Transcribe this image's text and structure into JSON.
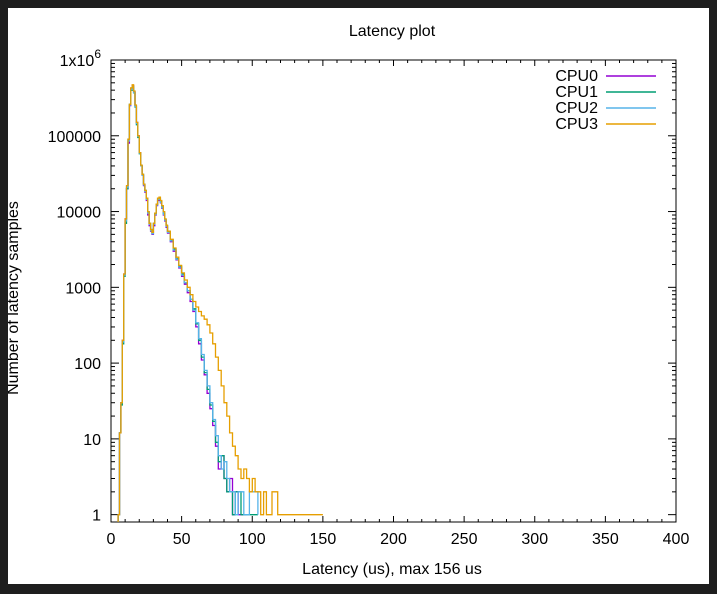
{
  "window": {
    "background": "#1e1e1e",
    "plot_background": "#ffffff"
  },
  "chart_data": {
    "type": "line",
    "title": "Latency plot",
    "xlabel": "Latency (us), max 156 us",
    "ylabel": "Number of latency samples",
    "x_scale": "linear",
    "y_scale": "log",
    "xlim": [
      0,
      400
    ],
    "ylim": [
      0.8,
      1000000
    ],
    "grid": false,
    "legend_position": "top-right",
    "x_ticks": [
      {
        "value": 0,
        "label": "0"
      },
      {
        "value": 50,
        "label": "50"
      },
      {
        "value": 100,
        "label": "100"
      },
      {
        "value": 150,
        "label": "150"
      },
      {
        "value": 200,
        "label": "200"
      },
      {
        "value": 250,
        "label": "250"
      },
      {
        "value": 300,
        "label": "300"
      },
      {
        "value": 350,
        "label": "350"
      },
      {
        "value": 400,
        "label": "400"
      }
    ],
    "y_ticks": [
      {
        "value": 1,
        "label": "1"
      },
      {
        "value": 10,
        "label": "10"
      },
      {
        "value": 100,
        "label": "100"
      },
      {
        "value": 1000,
        "label": "1000"
      },
      {
        "value": 10000,
        "label": "10000"
      },
      {
        "value": 100000,
        "label": "100000"
      },
      {
        "value": 1000000,
        "label": "1x10",
        "sup": "6"
      }
    ],
    "series": [
      {
        "name": "CPU0",
        "color": "#9400d3",
        "points": [
          [
            5,
            1
          ],
          [
            6,
            12
          ],
          [
            7,
            30
          ],
          [
            8,
            200
          ],
          [
            9,
            1500
          ],
          [
            10,
            8000
          ],
          [
            11,
            20000
          ],
          [
            12,
            80000
          ],
          [
            13,
            250000
          ],
          [
            14,
            420000
          ],
          [
            15,
            460000
          ],
          [
            16,
            380000
          ],
          [
            17,
            250000
          ],
          [
            18,
            150000
          ],
          [
            19,
            100000
          ],
          [
            20,
            60000
          ],
          [
            21,
            40000
          ],
          [
            22,
            30000
          ],
          [
            23,
            22000
          ],
          [
            24,
            18000
          ],
          [
            25,
            14000
          ],
          [
            26,
            9000
          ],
          [
            27,
            6500
          ],
          [
            28,
            5500
          ],
          [
            29,
            5000
          ],
          [
            30,
            6500
          ],
          [
            31,
            9000
          ],
          [
            32,
            12000
          ],
          [
            33,
            14000
          ],
          [
            34,
            14000
          ],
          [
            35,
            13000
          ],
          [
            36,
            11000
          ],
          [
            37,
            9000
          ],
          [
            38,
            7500
          ],
          [
            39,
            6200
          ],
          [
            40,
            5200
          ],
          [
            42,
            4000
          ],
          [
            44,
            3000
          ],
          [
            46,
            2300
          ],
          [
            48,
            1800
          ],
          [
            50,
            1400
          ],
          [
            52,
            1100
          ],
          [
            54,
            850
          ],
          [
            56,
            650
          ],
          [
            58,
            480
          ],
          [
            60,
            300
          ],
          [
            62,
            180
          ],
          [
            64,
            110
          ],
          [
            66,
            70
          ],
          [
            68,
            40
          ],
          [
            70,
            25
          ],
          [
            72,
            15
          ],
          [
            74,
            8
          ],
          [
            76,
            4
          ],
          [
            78,
            6
          ],
          [
            80,
            3
          ],
          [
            82,
            2
          ],
          [
            84,
            3
          ],
          [
            86,
            1
          ],
          [
            88,
            2
          ],
          [
            90,
            1
          ],
          [
            92,
            1
          ],
          [
            96,
            1
          ]
        ]
      },
      {
        "name": "CPU1",
        "color": "#009e73",
        "points": [
          [
            5,
            1
          ],
          [
            6,
            12
          ],
          [
            7,
            28
          ],
          [
            8,
            180
          ],
          [
            9,
            1400
          ],
          [
            10,
            7000
          ],
          [
            11,
            20000
          ],
          [
            12,
            90000
          ],
          [
            13,
            260000
          ],
          [
            14,
            400000
          ],
          [
            15,
            440000
          ],
          [
            16,
            370000
          ],
          [
            17,
            240000
          ],
          [
            18,
            140000
          ],
          [
            19,
            95000
          ],
          [
            20,
            58000
          ],
          [
            21,
            40000
          ],
          [
            22,
            31000
          ],
          [
            23,
            23000
          ],
          [
            24,
            19000
          ],
          [
            25,
            15000
          ],
          [
            26,
            10000
          ],
          [
            27,
            7000
          ],
          [
            28,
            5800
          ],
          [
            29,
            5200
          ],
          [
            30,
            7000
          ],
          [
            31,
            9500
          ],
          [
            32,
            12500
          ],
          [
            33,
            15000
          ],
          [
            34,
            15000
          ],
          [
            35,
            13500
          ],
          [
            36,
            11500
          ],
          [
            37,
            9500
          ],
          [
            38,
            7800
          ],
          [
            39,
            6500
          ],
          [
            40,
            5400
          ],
          [
            42,
            4200
          ],
          [
            44,
            3200
          ],
          [
            46,
            2400
          ],
          [
            48,
            1900
          ],
          [
            50,
            1500
          ],
          [
            52,
            1150
          ],
          [
            54,
            900
          ],
          [
            56,
            700
          ],
          [
            58,
            520
          ],
          [
            60,
            330
          ],
          [
            62,
            200
          ],
          [
            64,
            120
          ],
          [
            66,
            75
          ],
          [
            68,
            45
          ],
          [
            70,
            28
          ],
          [
            72,
            17
          ],
          [
            74,
            9
          ],
          [
            76,
            5
          ],
          [
            78,
            6
          ],
          [
            80,
            3
          ],
          [
            82,
            2
          ],
          [
            84,
            2
          ],
          [
            86,
            1
          ],
          [
            88,
            2
          ],
          [
            92,
            1
          ],
          [
            100,
            1
          ],
          [
            104,
            1
          ]
        ]
      },
      {
        "name": "CPU2",
        "color": "#56b4e9",
        "points": [
          [
            5,
            1
          ],
          [
            6,
            12
          ],
          [
            7,
            30
          ],
          [
            8,
            190
          ],
          [
            9,
            1450
          ],
          [
            10,
            7500
          ],
          [
            11,
            21000
          ],
          [
            12,
            85000
          ],
          [
            13,
            255000
          ],
          [
            14,
            410000
          ],
          [
            15,
            450000
          ],
          [
            16,
            375000
          ],
          [
            17,
            245000
          ],
          [
            18,
            145000
          ],
          [
            19,
            98000
          ],
          [
            20,
            59000
          ],
          [
            21,
            40000
          ],
          [
            22,
            30000
          ],
          [
            23,
            22500
          ],
          [
            24,
            18500
          ],
          [
            25,
            14500
          ],
          [
            26,
            9500
          ],
          [
            27,
            6800
          ],
          [
            28,
            5600
          ],
          [
            29,
            5100
          ],
          [
            30,
            6800
          ],
          [
            31,
            9200
          ],
          [
            32,
            12200
          ],
          [
            33,
            14500
          ],
          [
            34,
            14500
          ],
          [
            35,
            13200
          ],
          [
            36,
            11200
          ],
          [
            37,
            9200
          ],
          [
            38,
            7700
          ],
          [
            39,
            6400
          ],
          [
            40,
            5300
          ],
          [
            42,
            4100
          ],
          [
            44,
            3100
          ],
          [
            46,
            2350
          ],
          [
            48,
            1850
          ],
          [
            50,
            1450
          ],
          [
            52,
            1150
          ],
          [
            54,
            900
          ],
          [
            56,
            700
          ],
          [
            58,
            500
          ],
          [
            60,
            340
          ],
          [
            62,
            210
          ],
          [
            64,
            130
          ],
          [
            66,
            80
          ],
          [
            68,
            50
          ],
          [
            70,
            30
          ],
          [
            72,
            18
          ],
          [
            74,
            11
          ],
          [
            76,
            6
          ],
          [
            78,
            4
          ],
          [
            80,
            5
          ],
          [
            82,
            3
          ],
          [
            84,
            2
          ],
          [
            86,
            2
          ],
          [
            88,
            1
          ],
          [
            90,
            2
          ],
          [
            94,
            1
          ],
          [
            98,
            2
          ],
          [
            104,
            1
          ]
        ]
      },
      {
        "name": "CPU3",
        "color": "#e69f00",
        "points": [
          [
            5,
            1
          ],
          [
            6,
            12
          ],
          [
            7,
            30
          ],
          [
            8,
            200
          ],
          [
            9,
            1500
          ],
          [
            10,
            8000
          ],
          [
            11,
            22000
          ],
          [
            12,
            90000
          ],
          [
            13,
            260000
          ],
          [
            14,
            430000
          ],
          [
            15,
            470000
          ],
          [
            16,
            390000
          ],
          [
            17,
            255000
          ],
          [
            18,
            150000
          ],
          [
            19,
            100000
          ],
          [
            20,
            60000
          ],
          [
            21,
            41000
          ],
          [
            22,
            31000
          ],
          [
            23,
            23000
          ],
          [
            24,
            19000
          ],
          [
            25,
            15000
          ],
          [
            26,
            10000
          ],
          [
            27,
            7000
          ],
          [
            28,
            5800
          ],
          [
            29,
            5300
          ],
          [
            30,
            7000
          ],
          [
            31,
            9500
          ],
          [
            32,
            12500
          ],
          [
            33,
            15000
          ],
          [
            34,
            15500
          ],
          [
            35,
            14000
          ],
          [
            36,
            12000
          ],
          [
            37,
            10000
          ],
          [
            38,
            8000
          ],
          [
            39,
            6600
          ],
          [
            40,
            5500
          ],
          [
            42,
            4300
          ],
          [
            44,
            3300
          ],
          [
            46,
            2500
          ],
          [
            48,
            1950
          ],
          [
            50,
            1550
          ],
          [
            52,
            1250
          ],
          [
            54,
            1000
          ],
          [
            56,
            800
          ],
          [
            58,
            650
          ],
          [
            60,
            550
          ],
          [
            62,
            480
          ],
          [
            64,
            420
          ],
          [
            66,
            380
          ],
          [
            68,
            320
          ],
          [
            70,
            250
          ],
          [
            72,
            180
          ],
          [
            74,
            120
          ],
          [
            76,
            80
          ],
          [
            78,
            50
          ],
          [
            80,
            30
          ],
          [
            82,
            20
          ],
          [
            84,
            12
          ],
          [
            86,
            8
          ],
          [
            88,
            6
          ],
          [
            90,
            4
          ],
          [
            92,
            3
          ],
          [
            94,
            4
          ],
          [
            96,
            3
          ],
          [
            98,
            2
          ],
          [
            100,
            3
          ],
          [
            102,
            2
          ],
          [
            104,
            2
          ],
          [
            106,
            1
          ],
          [
            108,
            2
          ],
          [
            110,
            1
          ],
          [
            114,
            2
          ],
          [
            118,
            1
          ],
          [
            124,
            1
          ],
          [
            150,
            1
          ]
        ]
      }
    ]
  }
}
